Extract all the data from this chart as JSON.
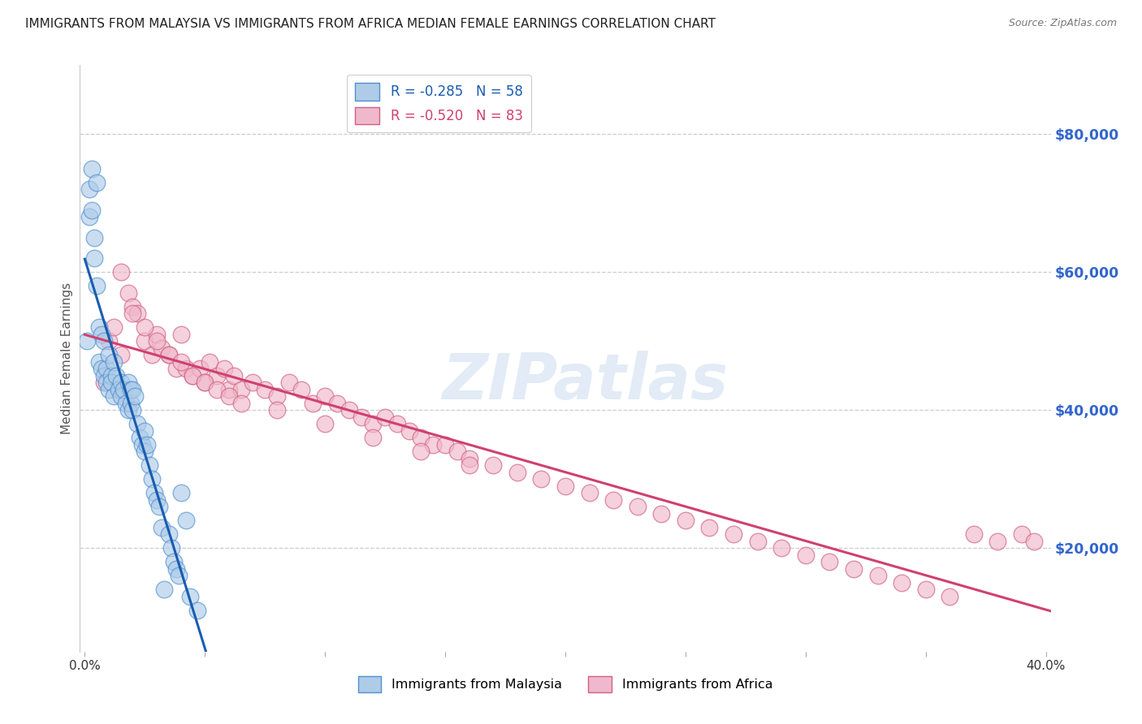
{
  "title": "IMMIGRANTS FROM MALAYSIA VS IMMIGRANTS FROM AFRICA MEDIAN FEMALE EARNINGS CORRELATION CHART",
  "source": "Source: ZipAtlas.com",
  "ylabel": "Median Female Earnings",
  "watermark": "ZIPatlas",
  "legend_malaysia": "Immigrants from Malaysia",
  "legend_africa": "Immigrants from Africa",
  "r_malaysia": -0.285,
  "n_malaysia": 58,
  "r_africa": -0.52,
  "n_africa": 83,
  "xlim": [
    -0.002,
    0.402
  ],
  "ylim": [
    5000,
    90000
  ],
  "yticks": [
    20000,
    40000,
    60000,
    80000
  ],
  "xticks": [
    0.0,
    0.05,
    0.1,
    0.15,
    0.2,
    0.25,
    0.3,
    0.35,
    0.4
  ],
  "xtick_labels": [
    "0.0%",
    "",
    "",
    "",
    "",
    "",
    "",
    "",
    "40.0%"
  ],
  "color_malaysia": "#aecce8",
  "color_africa": "#f0b8cc",
  "edge_malaysia": "#5090d0",
  "edge_africa": "#d06080",
  "line_color_malaysia": "#1a5cb0",
  "line_color_africa": "#d04070",
  "background_color": "#ffffff",
  "malaysia_x": [
    0.001,
    0.002,
    0.002,
    0.003,
    0.003,
    0.004,
    0.004,
    0.005,
    0.005,
    0.006,
    0.006,
    0.007,
    0.007,
    0.008,
    0.008,
    0.009,
    0.009,
    0.01,
    0.01,
    0.011,
    0.011,
    0.012,
    0.012,
    0.013,
    0.014,
    0.015,
    0.015,
    0.016,
    0.017,
    0.018,
    0.018,
    0.019,
    0.019,
    0.02,
    0.02,
    0.021,
    0.022,
    0.023,
    0.024,
    0.025,
    0.025,
    0.026,
    0.027,
    0.028,
    0.029,
    0.03,
    0.031,
    0.032,
    0.033,
    0.035,
    0.036,
    0.037,
    0.038,
    0.039,
    0.04,
    0.042,
    0.044,
    0.047
  ],
  "malaysia_y": [
    50000,
    72000,
    68000,
    75000,
    69000,
    65000,
    62000,
    73000,
    58000,
    52000,
    47000,
    51000,
    46000,
    50000,
    45000,
    46000,
    44000,
    48000,
    43000,
    45000,
    44000,
    47000,
    42000,
    45000,
    43000,
    44000,
    42000,
    43000,
    41000,
    44000,
    40000,
    43000,
    41000,
    43000,
    40000,
    42000,
    38000,
    36000,
    35000,
    34000,
    37000,
    35000,
    32000,
    30000,
    28000,
    27000,
    26000,
    23000,
    14000,
    22000,
    20000,
    18000,
    17000,
    16000,
    28000,
    24000,
    13000,
    11000
  ],
  "africa_x": [
    0.008,
    0.01,
    0.012,
    0.015,
    0.018,
    0.02,
    0.022,
    0.025,
    0.028,
    0.03,
    0.032,
    0.035,
    0.038,
    0.04,
    0.042,
    0.045,
    0.048,
    0.05,
    0.052,
    0.055,
    0.058,
    0.06,
    0.062,
    0.065,
    0.07,
    0.075,
    0.08,
    0.085,
    0.09,
    0.095,
    0.1,
    0.105,
    0.11,
    0.115,
    0.12,
    0.125,
    0.13,
    0.135,
    0.14,
    0.145,
    0.15,
    0.155,
    0.16,
    0.17,
    0.18,
    0.19,
    0.2,
    0.21,
    0.22,
    0.23,
    0.24,
    0.25,
    0.26,
    0.27,
    0.28,
    0.29,
    0.3,
    0.31,
    0.32,
    0.33,
    0.34,
    0.35,
    0.36,
    0.37,
    0.38,
    0.39,
    0.395,
    0.015,
    0.02,
    0.025,
    0.03,
    0.035,
    0.04,
    0.045,
    0.05,
    0.055,
    0.06,
    0.065,
    0.08,
    0.1,
    0.12,
    0.14,
    0.16
  ],
  "africa_y": [
    44000,
    50000,
    52000,
    48000,
    57000,
    55000,
    54000,
    50000,
    48000,
    51000,
    49000,
    48000,
    46000,
    51000,
    46000,
    45000,
    46000,
    44000,
    47000,
    45000,
    46000,
    43000,
    45000,
    43000,
    44000,
    43000,
    42000,
    44000,
    43000,
    41000,
    42000,
    41000,
    40000,
    39000,
    38000,
    39000,
    38000,
    37000,
    36000,
    35000,
    35000,
    34000,
    33000,
    32000,
    31000,
    30000,
    29000,
    28000,
    27000,
    26000,
    25000,
    24000,
    23000,
    22000,
    21000,
    20000,
    19000,
    18000,
    17000,
    16000,
    15000,
    14000,
    13000,
    22000,
    21000,
    22000,
    21000,
    60000,
    54000,
    52000,
    50000,
    48000,
    47000,
    45000,
    44000,
    43000,
    42000,
    41000,
    40000,
    38000,
    36000,
    34000,
    32000
  ]
}
